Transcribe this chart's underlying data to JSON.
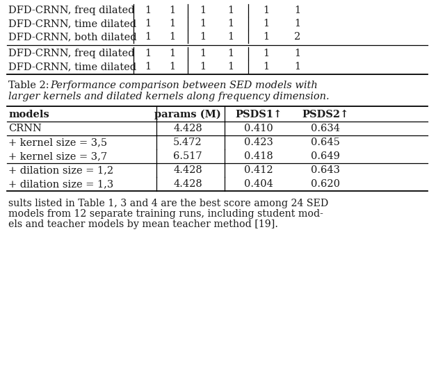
{
  "caption_line1": "Table 2:  ",
  "caption_line1_italic": "Performance comparison between SED models with",
  "caption_line2_italic": "larger kernels and dilated kernels along frequency dimension.",
  "table2_headers": [
    "models",
    "params (M)",
    "PSDS1↑",
    "PSDS2↑"
  ],
  "table2_rows": [
    [
      "CRNN",
      "4.428",
      "0.410",
      "0.634"
    ],
    [
      "+ kernel size = 3,5",
      "5.472",
      "0.423",
      "0.645"
    ],
    [
      "+ kernel size = 3,7",
      "6.517",
      "0.418",
      "0.649"
    ],
    [
      "+ dilation size = 1,2",
      "4.428",
      "0.412",
      "0.643"
    ],
    [
      "+ dilation size = 1,3",
      "4.428",
      "0.404",
      "0.620"
    ]
  ],
  "table2_group_separators": [
    1,
    3
  ],
  "footer_lines": [
    "sults listed in Table 1, 3 and 4 are the best score among 24 SED",
    "models from 12 separate training runs, including student mod-",
    "els and teacher models by mean teacher method [19]."
  ],
  "top_rows_g1": [
    [
      "DFD-CRNN, freq dilated",
      "1",
      "1",
      "1",
      "1",
      "1",
      "1"
    ],
    [
      "DFD-CRNN, time dilated",
      "1",
      "1",
      "1",
      "1",
      "1",
      "1"
    ],
    [
      "DFD-CRNN, both dilated",
      "1",
      "1",
      "1",
      "1",
      "1",
      "2"
    ]
  ],
  "top_rows_g2": [
    [
      "DFD-CRNN, freq dilated",
      "1",
      "1",
      "1",
      "1",
      "1",
      "1"
    ],
    [
      "DFD-CRNN, time dilated",
      "1",
      "1",
      "1",
      "1",
      "1",
      "1"
    ]
  ],
  "bg_color": "#ffffff",
  "text_color": "#1a1a1a",
  "fs_body": 10.5,
  "fs_caption": 10.5,
  "fs_footer": 10.2,
  "fs_header_bold": 10.5
}
